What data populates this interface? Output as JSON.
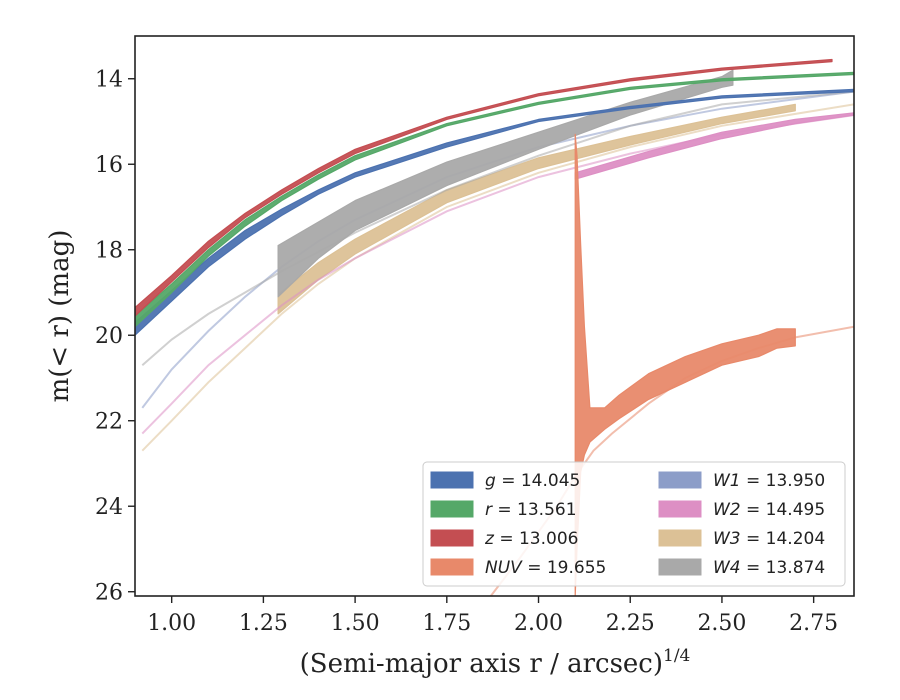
{
  "chart_data": {
    "type": "area",
    "xlabel": "(Semi-major axis r / arcsec)",
    "xlabel_superscript": "1/4",
    "ylabel": "m(< r) (mag)",
    "xlim": [
      0.9,
      2.86
    ],
    "ylim": [
      26.1,
      13.0
    ],
    "y_inverted": true,
    "x_ticks": [
      "1.00",
      "1.25",
      "1.50",
      "1.75",
      "2.00",
      "2.25",
      "2.50",
      "2.75"
    ],
    "y_ticks": [
      "14",
      "16",
      "18",
      "20",
      "22",
      "24",
      "26"
    ],
    "grid": false,
    "legend": {
      "placement": "lower-right",
      "columns": 2,
      "entries": [
        {
          "label": "g = 14.045",
          "color": "#4c72b0"
        },
        {
          "label": "r = 13.561",
          "color": "#55a868"
        },
        {
          "label": "z = 13.006",
          "color": "#c44e52"
        },
        {
          "label": "NUV = 19.655",
          "color": "#e8896a"
        },
        {
          "label": "W1 = 13.950",
          "color": "#8c9dc8"
        },
        {
          "label": "W2 = 14.495",
          "color": "#dd8fc4"
        },
        {
          "label": "W3 = 14.204",
          "color": "#dcc196"
        },
        {
          "label": "W4 = 13.874",
          "color": "#a9a9a9"
        }
      ]
    },
    "series": [
      {
        "key": "W3",
        "color": "#dcc196",
        "model": {
          "x": [
            0.92,
            1.0,
            1.1,
            1.2,
            1.3,
            1.4,
            1.5,
            1.75,
            2.0,
            2.25,
            2.5,
            2.86
          ],
          "y": [
            22.7,
            22.0,
            21.1,
            20.3,
            19.5,
            18.8,
            18.2,
            17.0,
            16.2,
            15.6,
            15.1,
            14.6
          ]
        },
        "band": {
          "x": [
            1.29,
            1.4,
            1.5,
            1.75,
            2.0,
            2.25,
            2.5,
            2.7
          ],
          "y_low": [
            19.5,
            18.7,
            18.1,
            16.9,
            16.1,
            15.55,
            15.05,
            14.75
          ],
          "y_high": [
            19.05,
            18.3,
            17.75,
            16.6,
            15.85,
            15.35,
            14.9,
            14.6
          ]
        }
      },
      {
        "key": "W2",
        "color": "#dd8fc4",
        "model": {
          "x": [
            0.92,
            1.0,
            1.1,
            1.2,
            1.3,
            1.4,
            1.5,
            1.75,
            2.0,
            2.25,
            2.5,
            2.86
          ],
          "y": [
            22.3,
            21.6,
            20.7,
            20.0,
            19.3,
            18.7,
            18.2,
            17.1,
            16.3,
            15.75,
            15.3,
            14.85
          ]
        },
        "band": {
          "x": [
            2.1,
            2.3,
            2.5,
            2.7,
            2.86
          ],
          "y_low": [
            16.35,
            15.85,
            15.4,
            15.05,
            14.85
          ],
          "y_high": [
            16.2,
            15.7,
            15.25,
            14.95,
            14.8
          ]
        }
      },
      {
        "key": "W1",
        "color": "#8c9dc8",
        "model": {
          "x": [
            0.92,
            1.0,
            1.1,
            1.2,
            1.3,
            1.4,
            1.5,
            1.75,
            2.0,
            2.25,
            2.5,
            2.86
          ],
          "y": [
            21.7,
            20.8,
            19.9,
            19.1,
            18.4,
            17.8,
            17.3,
            16.3,
            15.6,
            15.1,
            14.7,
            14.3
          ]
        }
      },
      {
        "key": "W4",
        "color": "#a9a9a9",
        "model": {
          "x": [
            0.92,
            1.0,
            1.1,
            1.2,
            1.3,
            1.5,
            1.75,
            2.0,
            2.25,
            2.5,
            2.86
          ],
          "y": [
            20.7,
            20.1,
            19.5,
            19.0,
            18.5,
            17.6,
            16.6,
            15.8,
            15.1,
            14.6,
            14.3
          ]
        },
        "band": {
          "x": [
            1.29,
            1.4,
            1.5,
            1.75,
            2.0,
            2.25,
            2.5,
            2.53
          ],
          "y_low": [
            19.1,
            18.2,
            17.55,
            16.5,
            15.65,
            14.85,
            14.2,
            14.15
          ],
          "y_high": [
            17.9,
            17.35,
            16.85,
            15.95,
            15.25,
            14.55,
            13.95,
            13.8
          ]
        }
      },
      {
        "key": "NUV",
        "color": "#e8896a",
        "model": {
          "x": [
            1.87,
            1.95,
            2.05,
            2.1,
            2.15,
            2.2,
            2.3,
            2.4,
            2.5,
            2.6,
            2.7,
            2.86
          ],
          "y": [
            26.1,
            25.2,
            24.0,
            23.3,
            22.7,
            22.3,
            21.6,
            21.0,
            20.6,
            20.3,
            20.05,
            19.8
          ]
        },
        "band": {
          "x": [
            2.1,
            2.105,
            2.115,
            2.125,
            2.14,
            2.18,
            2.22,
            2.3,
            2.4,
            2.5,
            2.6,
            2.65,
            2.7
          ],
          "y_low": [
            26.1,
            25.0,
            23.2,
            22.8,
            22.5,
            22.2,
            21.95,
            21.5,
            21.1,
            20.7,
            20.5,
            20.3,
            20.25
          ],
          "y_high": [
            15.3,
            15.8,
            17.9,
            19.8,
            21.7,
            21.7,
            21.4,
            20.9,
            20.5,
            20.2,
            20.0,
            19.85,
            19.85
          ]
        }
      },
      {
        "key": "g",
        "color": "#4c72b0",
        "band": {
          "x": [
            0.9,
            1.0,
            1.1,
            1.2,
            1.3,
            1.4,
            1.5,
            1.75,
            2.0,
            2.25,
            2.5,
            2.86
          ],
          "y_low": [
            20.0,
            19.2,
            18.4,
            17.75,
            17.2,
            16.7,
            16.3,
            15.6,
            15.0,
            14.7,
            14.45,
            14.3
          ],
          "y_high": [
            19.7,
            18.95,
            18.2,
            17.55,
            17.05,
            16.6,
            16.2,
            15.5,
            14.95,
            14.65,
            14.4,
            14.25
          ]
        }
      },
      {
        "key": "r",
        "color": "#55a868",
        "band": {
          "x": [
            0.9,
            1.0,
            1.1,
            1.2,
            1.3,
            1.4,
            1.5,
            1.75,
            2.0,
            2.25,
            2.5,
            2.86
          ],
          "y_low": [
            19.8,
            19.0,
            18.15,
            17.45,
            16.85,
            16.35,
            15.9,
            15.1,
            14.6,
            14.25,
            14.05,
            13.9
          ],
          "y_high": [
            19.55,
            18.8,
            18.0,
            17.3,
            16.75,
            16.25,
            15.8,
            15.05,
            14.55,
            14.2,
            14.0,
            13.85
          ]
        }
      },
      {
        "key": "z",
        "color": "#c44e52",
        "band": {
          "x": [
            0.9,
            1.0,
            1.1,
            1.2,
            1.3,
            1.4,
            1.5,
            1.75,
            2.0,
            2.25,
            2.5,
            2.8
          ],
          "y_low": [
            19.55,
            18.75,
            17.95,
            17.25,
            16.7,
            16.2,
            15.75,
            14.95,
            14.4,
            14.05,
            13.8,
            13.6
          ],
          "y_high": [
            19.35,
            18.6,
            17.8,
            17.15,
            16.6,
            16.1,
            15.65,
            14.9,
            14.35,
            14.0,
            13.75,
            13.55
          ]
        }
      }
    ]
  }
}
